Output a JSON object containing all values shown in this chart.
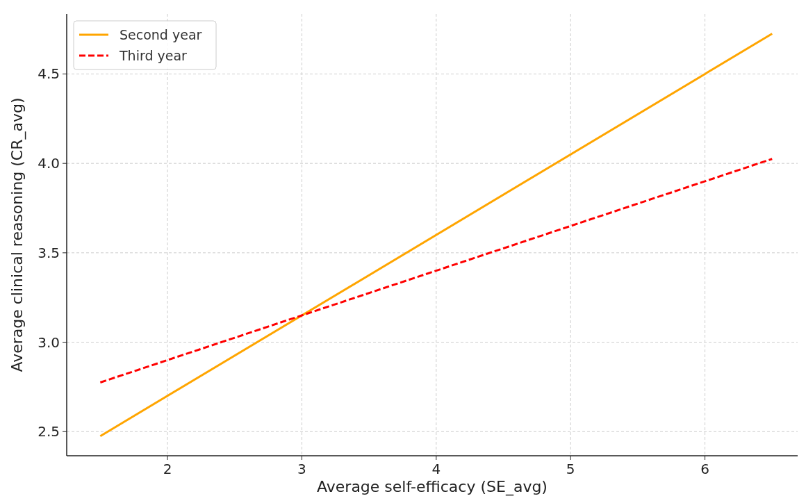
{
  "chart_data": {
    "type": "line",
    "xlabel": "Average self-efficacy (SE_avg)",
    "ylabel": "Average clinical reasoning (CR_avg)",
    "series": [
      {
        "name": "Second year",
        "color": "#ffa500",
        "values": [
          2.475,
          4.725
        ],
        "line_style": "solid"
      },
      {
        "name": "Third year",
        "color": "#ff0000",
        "values": [
          2.775,
          4.025
        ],
        "line_style": "dashed"
      }
    ],
    "x": [
      1.5,
      6.5
    ],
    "xlim": [
      1.25,
      6.69
    ],
    "ylim": [
      2.365,
      4.836
    ],
    "xticks": [
      2,
      3,
      4,
      5,
      6
    ],
    "yticks": [
      {
        "value": 2.5,
        "label": "2.5"
      },
      {
        "value": 3.0,
        "label": "3.0"
      },
      {
        "value": 3.5,
        "label": "3.5"
      },
      {
        "value": 4.0,
        "label": "4.0"
      },
      {
        "value": 4.5,
        "label": "4.5"
      }
    ],
    "grid": true,
    "legend": "top left",
    "marker": "none"
  }
}
